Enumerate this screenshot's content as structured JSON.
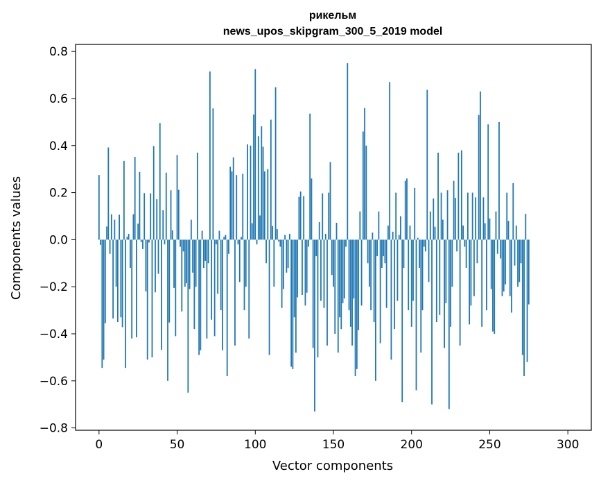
{
  "chart_data": {
    "type": "bar",
    "title": "рикельм",
    "subtitle": "news_upos_skipgram_300_5_2019 model",
    "xlabel": "Vector components",
    "ylabel": "Components values",
    "xlim": [
      -15,
      315
    ],
    "ylim": [
      -0.81,
      0.83
    ],
    "xticks": [
      0,
      50,
      100,
      150,
      200,
      250,
      300
    ],
    "yticks": [
      -0.8,
      -0.6,
      -0.4,
      -0.2,
      0.0,
      0.2,
      0.4,
      0.6,
      0.8
    ],
    "xtick_labels": [
      "0",
      "50",
      "100",
      "150",
      "200",
      "250",
      "300"
    ],
    "ytick_labels": [
      "−0.8",
      "−0.6",
      "−0.4",
      "−0.2",
      "0.0",
      "0.2",
      "0.4",
      "0.6",
      "0.8"
    ],
    "bar_color": "#1f77b4",
    "grid": false,
    "legend": "none",
    "series": [
      {
        "x_start": 0,
        "values": [
          0.275,
          -0.022,
          -0.545,
          -0.51,
          -0.355,
          0.056,
          0.392,
          -0.06,
          0.108,
          -0.335,
          0.085,
          -0.2,
          -0.35,
          0.106,
          -0.33,
          -0.372,
          0.335,
          -0.545,
          0.012,
          0.025,
          -0.12,
          -0.42,
          0.108,
          0.352,
          -0.415,
          0.068,
          0.288,
          -0.01,
          -0.04,
          0.198,
          -0.22,
          -0.51,
          -0.012,
          0.197,
          -0.5,
          0.398,
          -0.224,
          0.172,
          -0.145,
          0.496,
          -0.468,
          0.125,
          -0.02,
          0.285,
          -0.6,
          -0.352,
          0.21,
          0.04,
          -0.205,
          -0.41,
          0.36,
          0.212,
          -0.03,
          -0.305,
          -0.05,
          -0.2,
          -0.185,
          -0.65,
          -0.21,
          0.085,
          -0.14,
          -0.38,
          -0.2,
          0.37,
          -0.49,
          -0.47,
          0.038,
          -0.12,
          -0.09,
          -0.42,
          -0.1,
          0.715,
          -0.34,
          0.558,
          -0.41,
          -0.02,
          -0.23,
          0.038,
          -0.3,
          -0.47,
          0.012,
          0.02,
          -0.58,
          -0.06,
          0.31,
          0.29,
          0.35,
          -0.45,
          0.275,
          -0.02,
          -0.18,
          0.012,
          0.28,
          -0.3,
          -0.2,
          0.405,
          -0.42,
          0.4,
          0.07,
          0.532,
          0.725,
          -0.02,
          0.44,
          0.103,
          0.482,
          0.395,
          0.29,
          -0.1,
          0.3,
          -0.49,
          0.51,
          0.058,
          -0.2,
          0.648,
          0.045,
          -0.008,
          -0.03,
          -0.29,
          -0.21,
          0.02,
          -0.14,
          -0.12,
          0.025,
          -0.54,
          -0.55,
          -0.33,
          -0.48,
          -0.245,
          0.182,
          0.205,
          -0.235,
          0.185,
          -0.28,
          -0.225,
          -0.03,
          0.536,
          0.26,
          -0.46,
          -0.73,
          -0.07,
          -0.5,
          0.075,
          -0.26,
          0.197,
          -0.29,
          0.025,
          -0.45,
          0.2,
          0.33,
          -0.15,
          -0.2,
          -0.4,
          0.072,
          -0.48,
          -0.33,
          -0.38,
          -0.27,
          -0.25,
          -0.03,
          0.75,
          -0.3,
          -0.37,
          -0.45,
          -0.25,
          -0.58,
          -0.55,
          -0.385,
          0.12,
          -0.28,
          0.46,
          0.56,
          0.4,
          -0.1,
          -0.2,
          -0.3,
          0.03,
          -0.35,
          -0.6,
          -0.07,
          0.12,
          -0.44,
          -0.12,
          -0.07,
          -0.1,
          -0.29,
          0.06,
          0.67,
          -0.51,
          0.034,
          -0.38,
          0.2,
          -0.26,
          0.02,
          0.1,
          -0.69,
          -0.12,
          0.25,
          0.26,
          -0.3,
          0.06,
          -0.37,
          -0.26,
          0.22,
          -0.64,
          0.008,
          -0.12,
          -0.48,
          -0.3,
          -0.03,
          -0.05,
          0.637,
          -0.18,
          0.12,
          -0.7,
          0.175,
          0.055,
          -0.35,
          0.37,
          -0.32,
          0.2,
          0.085,
          -0.46,
          -0.27,
          0.21,
          -0.72,
          -0.37,
          -0.2,
          0.25,
          0.178,
          -0.05,
          0.37,
          -0.45,
          0.38,
          0.06,
          -0.03,
          -0.12,
          0.2,
          -0.36,
          -0.28,
          0.2,
          -0.24,
          0.18,
          -0.1,
          0.53,
          0.63,
          -0.37,
          0.18,
          0.07,
          -0.3,
          0.49,
          0.09,
          -0.21,
          -0.39,
          -0.4,
          0.12,
          -0.06,
          0.5,
          -0.08,
          -0.24,
          -0.22,
          -0.19,
          0.2,
          0.08,
          -0.24,
          -0.31,
          0.24,
          -0.11,
          0.06,
          -0.2,
          -0.18,
          -0.1,
          -0.49,
          -0.58,
          0.11,
          -0.52,
          -0.275
        ]
      }
    ]
  }
}
